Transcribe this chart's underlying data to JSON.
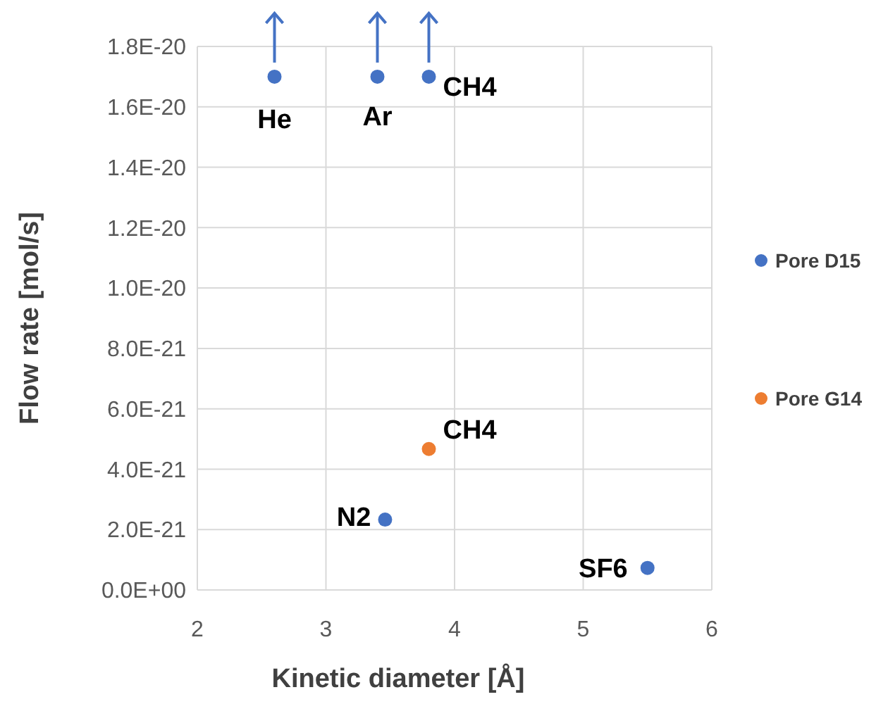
{
  "chart_data": {
    "type": "scatter",
    "xlabel": "Kinetic diameter [Å]",
    "ylabel": "Flow rate [mol/s]",
    "xlim": [
      2,
      6
    ],
    "xticks": [
      2,
      3,
      4,
      5,
      6
    ],
    "ylim": [
      0,
      1.8e-20
    ],
    "yticks": [
      {
        "value": 0,
        "label": "0.0E+00"
      },
      {
        "value": 2e-21,
        "label": "2.0E-21"
      },
      {
        "value": 4e-21,
        "label": "4.0E-21"
      },
      {
        "value": 6e-21,
        "label": "6.0E-21"
      },
      {
        "value": 8e-21,
        "label": "8.0E-21"
      },
      {
        "value": 1e-20,
        "label": "1.0E-20"
      },
      {
        "value": 1.2e-20,
        "label": "1.2E-20"
      },
      {
        "value": 1.4e-20,
        "label": "1.4E-20"
      },
      {
        "value": 1.6e-20,
        "label": "1.6E-20"
      },
      {
        "value": 1.8e-20,
        "label": "1.8E-20"
      }
    ],
    "grid": true,
    "legend": "right",
    "marker": "circle",
    "series": [
      {
        "name": "Pore D15",
        "color": "#4472c4",
        "x": [
          2.6,
          3.4,
          3.8,
          3.46,
          5.5
        ],
        "values": [
          1.7e-20,
          1.7e-20,
          1.7e-20,
          2.33e-21,
          7.3e-22
        ]
      },
      {
        "name": "Pore G14",
        "color": "#ed7d31",
        "x": [
          3.8
        ],
        "values": [
          4.67e-21
        ]
      }
    ],
    "annotations": [
      {
        "text": "He",
        "x": 2.6,
        "y": 1.7e-20
      },
      {
        "text": "Ar",
        "x": 3.4,
        "y": 1.7e-20
      },
      {
        "text": "CH4",
        "x": 3.8,
        "y": 1.7e-20
      },
      {
        "text": "N2",
        "x": 3.46,
        "y": 2.33e-21
      },
      {
        "text": "SF6",
        "x": 5.5,
        "y": 7.3e-22
      },
      {
        "text": "CH4",
        "x": 3.8,
        "y": 4.67e-21
      }
    ]
  }
}
